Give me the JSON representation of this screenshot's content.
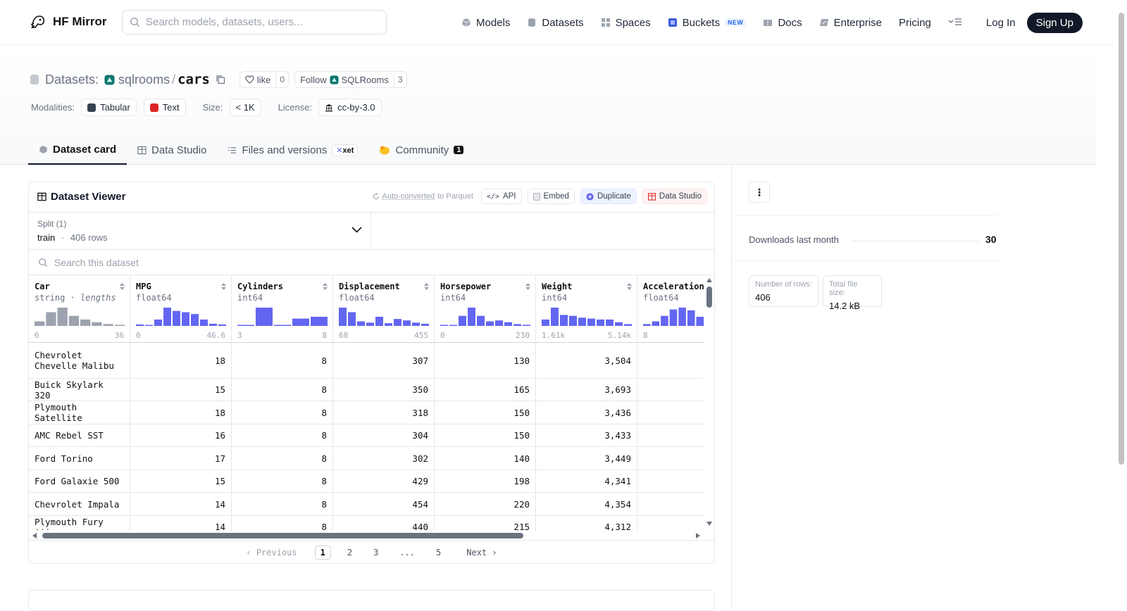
{
  "brand": {
    "name": "HF Mirror"
  },
  "search": {
    "placeholder": "Search models, datasets, users..."
  },
  "nav": {
    "items": [
      {
        "label": "Models",
        "icon": "cube-icon",
        "color": "#9ca3af"
      },
      {
        "label": "Datasets",
        "icon": "database-icon",
        "color": "#9ca3af"
      },
      {
        "label": "Spaces",
        "icon": "grid-icon",
        "color": "#9ca3af"
      },
      {
        "label": "Buckets",
        "icon": "bucket-icon",
        "color": "#3b5bdb",
        "badge": "NEW"
      },
      {
        "label": "Docs",
        "icon": "book-icon",
        "color": "#9ca3af"
      },
      {
        "label": "Enterprise",
        "icon": "enterprise-icon",
        "color": "#9ca3af"
      },
      {
        "label": "Pricing"
      }
    ],
    "login": "Log In",
    "signup": "Sign Up"
  },
  "repo": {
    "type_label": "Datasets:",
    "owner": "sqlrooms",
    "separator": "/",
    "name": "cars",
    "like_label": "like",
    "like_count": "0",
    "follow_label": "Follow",
    "follow_org": "SQLRooms",
    "follow_count": "3"
  },
  "meta": {
    "modalities_label": "Modalities:",
    "modalities": [
      {
        "label": "Tabular",
        "color": "#374151"
      },
      {
        "label": "Text",
        "color": "#dc2626"
      }
    ],
    "size_label": "Size:",
    "size": "< 1K",
    "license_label": "License:",
    "license": "cc-by-3.0"
  },
  "tabs": [
    {
      "label": "Dataset card",
      "active": true
    },
    {
      "label": "Data Studio"
    },
    {
      "label": "Files and versions",
      "badge": "xet"
    },
    {
      "label": "Community",
      "count": "1"
    }
  ],
  "viewer": {
    "title": "Dataset Viewer",
    "auto_converted_link": "Auto-converted",
    "auto_converted_rest": "to Parquet",
    "actions": {
      "api": "API",
      "embed": "Embed",
      "duplicate": "Duplicate",
      "studio": "Data Studio"
    },
    "split_label": "Split (1)",
    "split_value": "train",
    "split_dot": "·",
    "split_rows": "406 rows",
    "search_placeholder": "Search this dataset",
    "columns": [
      {
        "name": "Car",
        "type": "string",
        "subtype": "lengths",
        "min": "6",
        "max": "36",
        "hist": [
          0.25,
          0.75,
          1.0,
          0.55,
          0.35,
          0.2,
          0.1,
          0.05
        ],
        "bar_color": "#9ca3af"
      },
      {
        "name": "MPG",
        "type": "float64",
        "min": "0",
        "max": "46.6",
        "hist": [
          0.08,
          0.05,
          0.35,
          1.0,
          0.82,
          0.75,
          0.65,
          0.35,
          0.12,
          0.08
        ],
        "bar_color": "#6366f1"
      },
      {
        "name": "Cylinders",
        "type": "int64",
        "min": "3",
        "max": "8",
        "hist": [
          0.05,
          1.0,
          0.04,
          0.4,
          0.5
        ],
        "bar_color": "#6366f1"
      },
      {
        "name": "Displacement",
        "type": "float64",
        "min": "68",
        "max": "455",
        "hist": [
          1.0,
          0.75,
          0.25,
          0.18,
          0.5,
          0.15,
          0.38,
          0.3,
          0.18,
          0.12
        ],
        "bar_color": "#6366f1"
      },
      {
        "name": "Horsepower",
        "type": "int64",
        "min": "0",
        "max": "230",
        "hist": [
          0.05,
          0.05,
          0.55,
          1.0,
          0.55,
          0.25,
          0.3,
          0.2,
          0.1,
          0.06
        ],
        "bar_color": "#6366f1"
      },
      {
        "name": "Weight",
        "type": "int64",
        "min": "1.61k",
        "max": "5.14k",
        "hist": [
          0.35,
          1.0,
          0.6,
          0.55,
          0.45,
          0.4,
          0.35,
          0.35,
          0.2,
          0.1
        ],
        "bar_color": "#6366f1"
      },
      {
        "name": "Acceleration",
        "type": "float64",
        "min": "8",
        "max": "",
        "hist": [
          0.1,
          0.25,
          0.55,
          0.9,
          1.0,
          0.85,
          0.5
        ],
        "bar_color": "#6366f1"
      }
    ],
    "rows": [
      {
        "car": "Chevrolet Chevelle Malibu",
        "mpg": "18",
        "cyl": "8",
        "disp": "307",
        "hp": "130",
        "weight": "3,504"
      },
      {
        "car": "Buick Skylark 320",
        "mpg": "15",
        "cyl": "8",
        "disp": "350",
        "hp": "165",
        "weight": "3,693"
      },
      {
        "car": "Plymouth Satellite",
        "mpg": "18",
        "cyl": "8",
        "disp": "318",
        "hp": "150",
        "weight": "3,436"
      },
      {
        "car": "AMC Rebel SST",
        "mpg": "16",
        "cyl": "8",
        "disp": "304",
        "hp": "150",
        "weight": "3,433"
      },
      {
        "car": "Ford Torino",
        "mpg": "17",
        "cyl": "8",
        "disp": "302",
        "hp": "140",
        "weight": "3,449"
      },
      {
        "car": "Ford Galaxie 500",
        "mpg": "15",
        "cyl": "8",
        "disp": "429",
        "hp": "198",
        "weight": "4,341"
      },
      {
        "car": "Chevrolet Impala",
        "mpg": "14",
        "cyl": "8",
        "disp": "454",
        "hp": "220",
        "weight": "4,354"
      },
      {
        "car": "Plymouth Fury iii",
        "mpg": "14",
        "cyl": "8",
        "disp": "440",
        "hp": "215",
        "weight": "4,312"
      }
    ],
    "pagination": {
      "previous": "Previous",
      "pages": [
        "1",
        "2",
        "3",
        "...",
        "5"
      ],
      "active": "1",
      "next": "Next"
    }
  },
  "sidebar": {
    "downloads_label": "Downloads last month",
    "downloads_value": "30",
    "stats": [
      {
        "label": "Number of rows:",
        "value": "406"
      },
      {
        "label": "Total file size:",
        "value": "14.2 kB"
      }
    ]
  }
}
